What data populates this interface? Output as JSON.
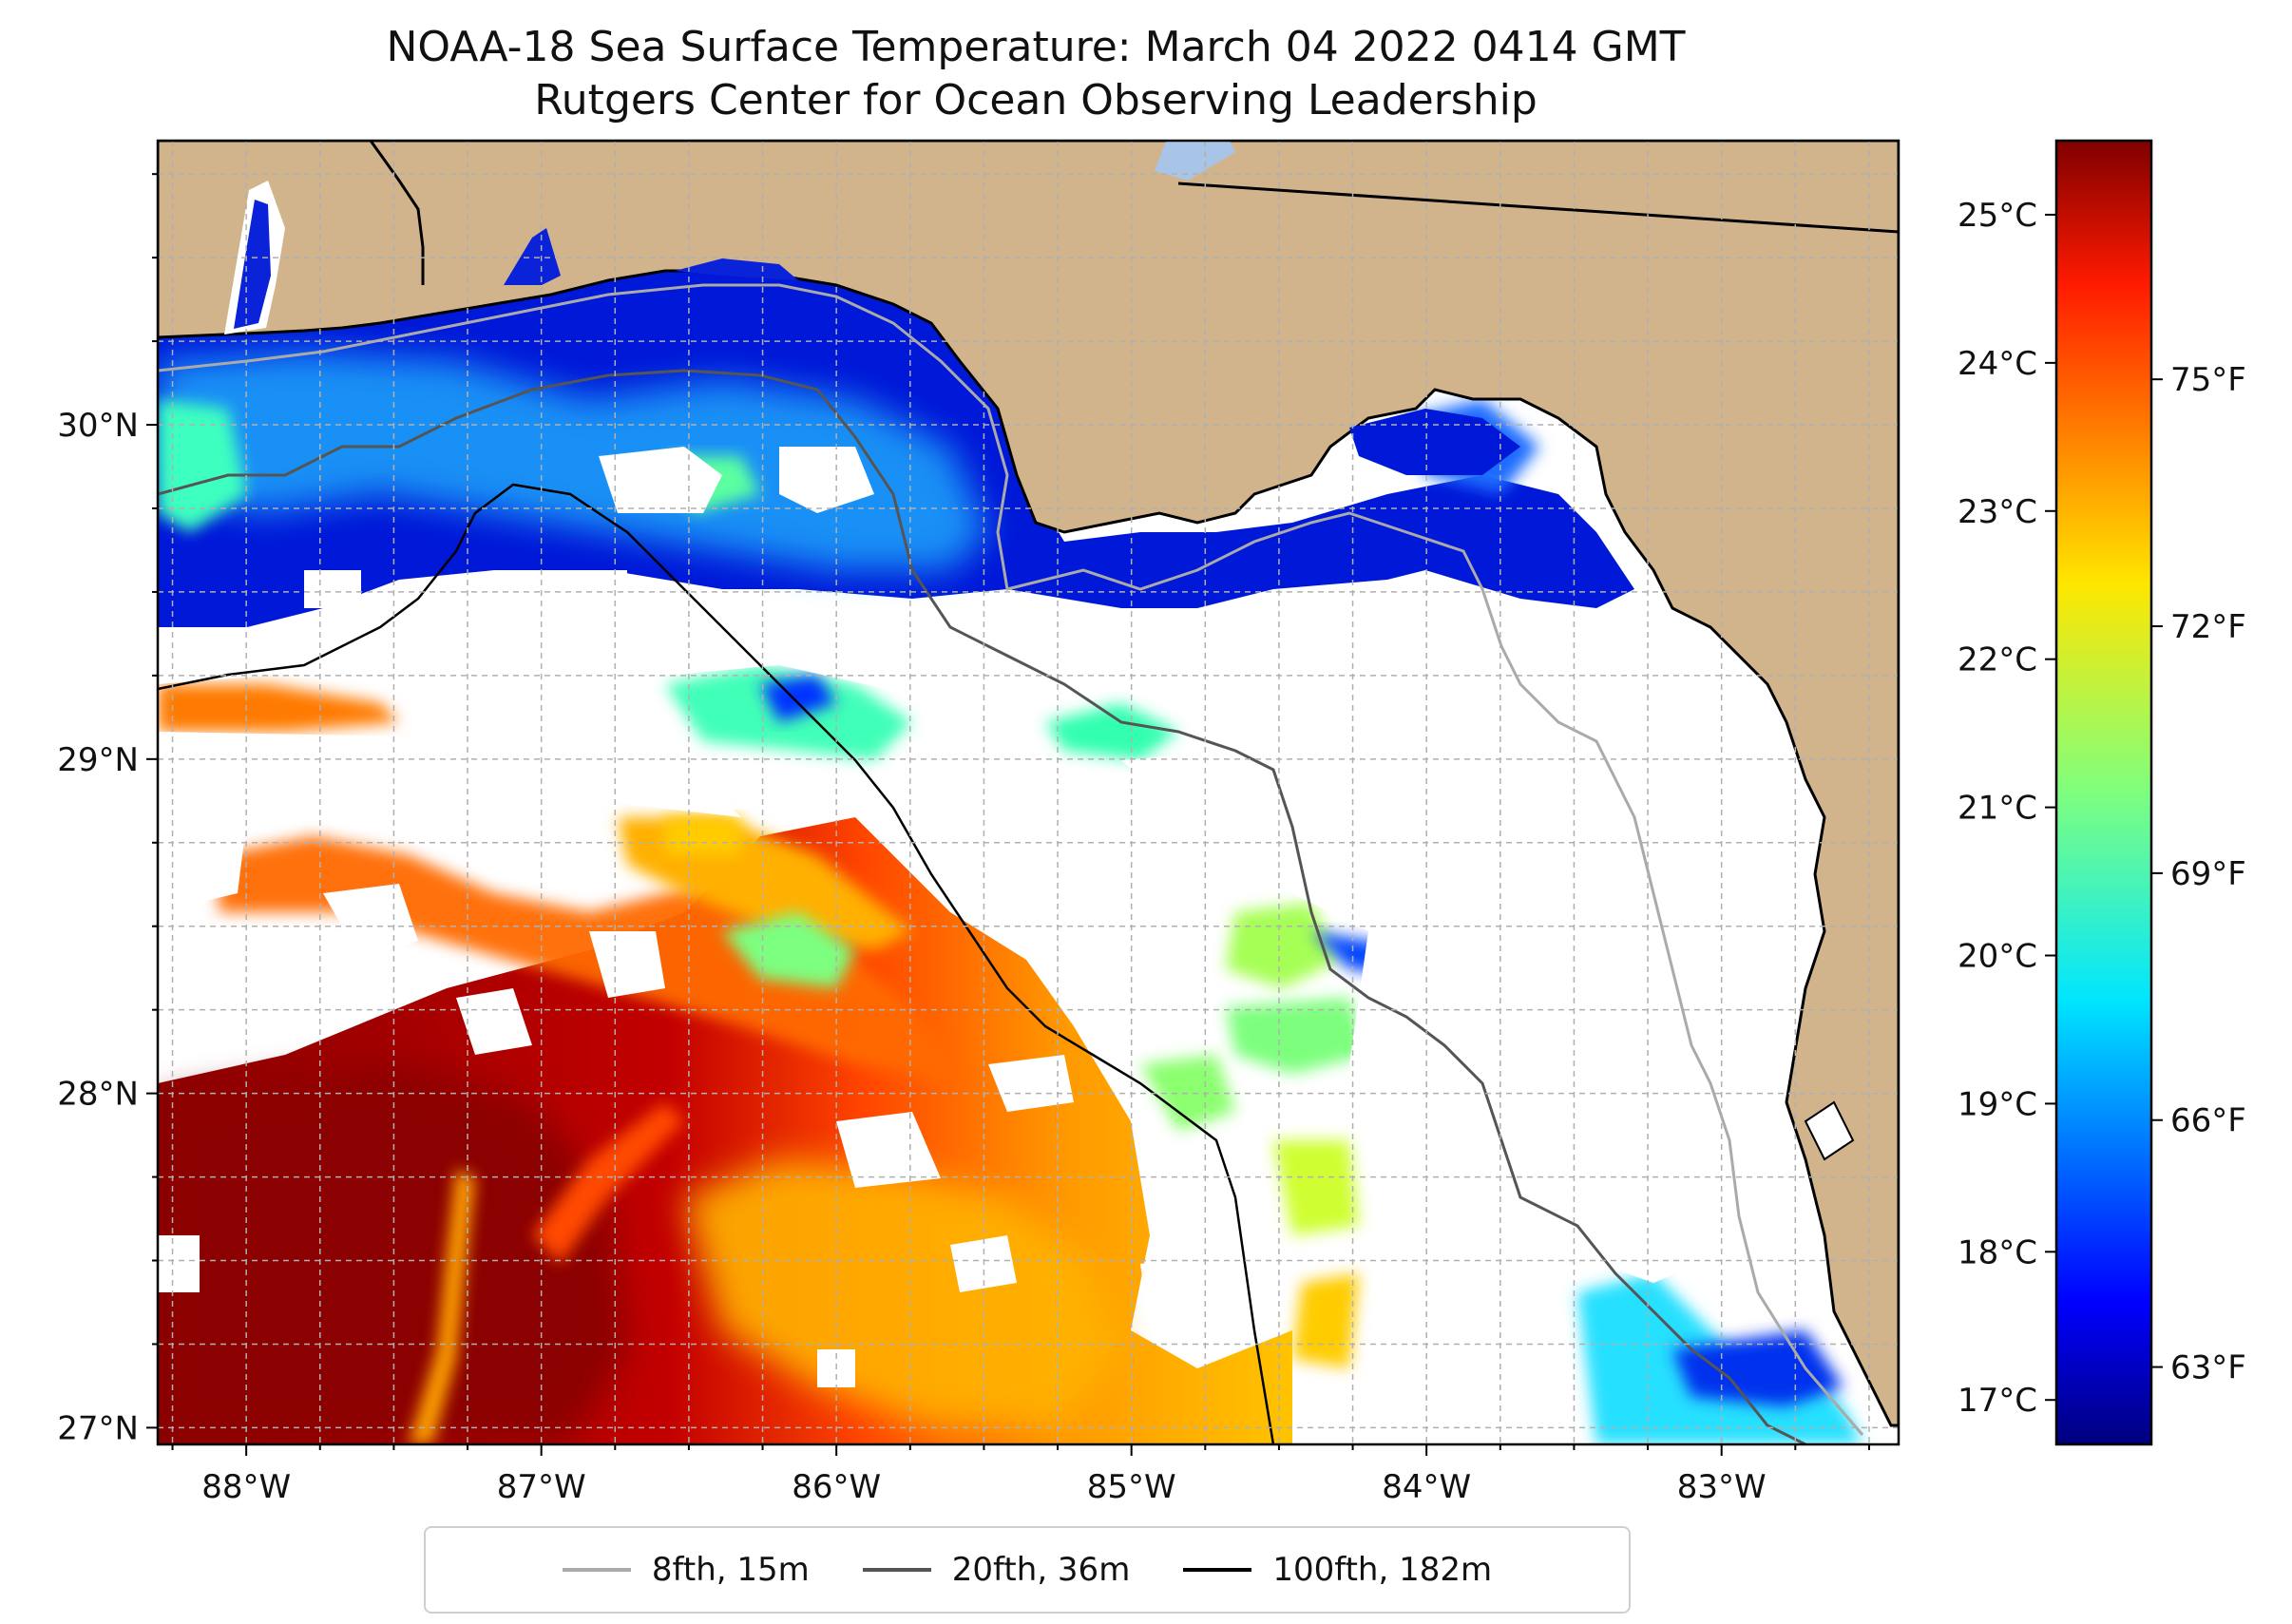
{
  "title": "NOAA-18 Sea Surface Temperature: March 04 2022 0414 GMT",
  "subtitle": "Rutgers Center for Ocean Observing Leadership",
  "colors": {
    "land": "#d2b48c",
    "no_data": "#ffffff",
    "coast": "#000000",
    "grid": "#b0b0b0",
    "lake": "#a8c4e6"
  },
  "map": {
    "lon_range": [
      -88.3,
      -82.4
    ],
    "lat_range": [
      26.95,
      30.85
    ],
    "lon_ticks": [
      {
        "value": -88,
        "label": "88°W"
      },
      {
        "value": -87,
        "label": "87°W"
      },
      {
        "value": -86,
        "label": "86°W"
      },
      {
        "value": -85,
        "label": "85°W"
      },
      {
        "value": -84,
        "label": "84°W"
      },
      {
        "value": -83,
        "label": "83°W"
      }
    ],
    "lat_ticks": [
      {
        "value": 27,
        "label": "27°N"
      },
      {
        "value": 28,
        "label": "28°N"
      },
      {
        "value": 29,
        "label": "29°N"
      },
      {
        "value": 30,
        "label": "30°N"
      }
    ]
  },
  "colorbar": {
    "colormap": "jet",
    "celsius_range": [
      16.7,
      25.5
    ],
    "celsius_ticks": [
      {
        "value": 17,
        "label": "17°C"
      },
      {
        "value": 18,
        "label": "18°C"
      },
      {
        "value": 19,
        "label": "19°C"
      },
      {
        "value": 20,
        "label": "20°C"
      },
      {
        "value": 21,
        "label": "21°C"
      },
      {
        "value": 22,
        "label": "22°C"
      },
      {
        "value": 23,
        "label": "23°C"
      },
      {
        "value": 24,
        "label": "24°C"
      },
      {
        "value": 25,
        "label": "25°C"
      }
    ],
    "fahrenheit_ticks": [
      {
        "value": 63,
        "label": "63°F"
      },
      {
        "value": 66,
        "label": "66°F"
      },
      {
        "value": 69,
        "label": "69°F"
      },
      {
        "value": 72,
        "label": "72°F"
      },
      {
        "value": 75,
        "label": "75°F"
      }
    ]
  },
  "legend": {
    "entries": [
      {
        "label": "8fth, 15m",
        "color": "#aaaaaa"
      },
      {
        "label": "20fth, 36m",
        "color": "#555555"
      },
      {
        "label": "100fth, 182m",
        "color": "#000000"
      }
    ]
  }
}
